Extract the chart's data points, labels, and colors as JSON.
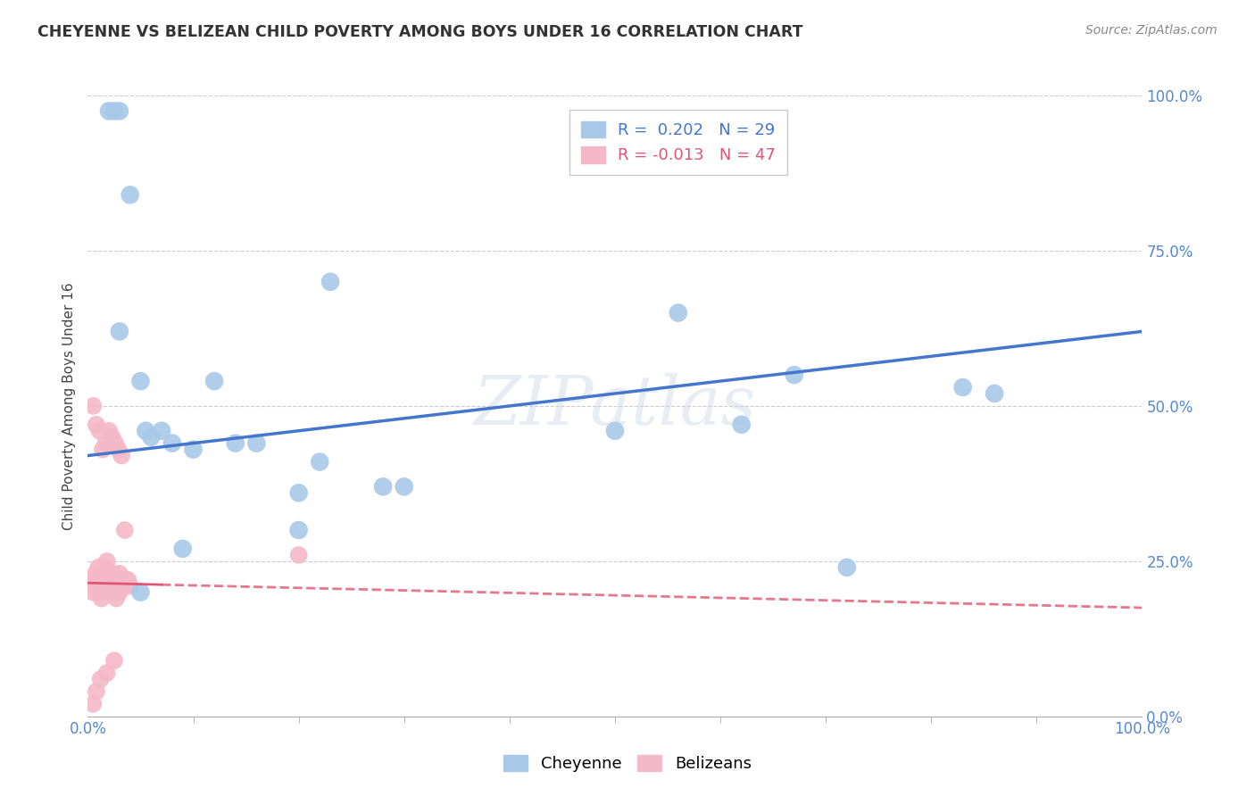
{
  "title": "CHEYENNE VS BELIZEAN CHILD POVERTY AMONG BOYS UNDER 16 CORRELATION CHART",
  "source": "Source: ZipAtlas.com",
  "ylabel": "Child Poverty Among Boys Under 16",
  "xlim": [
    0,
    1
  ],
  "ylim": [
    0,
    1
  ],
  "ytick_values": [
    0,
    0.25,
    0.5,
    0.75,
    1.0
  ],
  "background_color": "#ffffff",
  "grid_color": "#cccccc",
  "watermark": "ZIPatlas",
  "cheyenne_color": "#a8c8e8",
  "belizean_color": "#f5b8c8",
  "cheyenne_line_color": "#4477cc",
  "belizean_line_color": "#e05575",
  "cheyenne_R": 0.202,
  "cheyenne_N": 29,
  "belizean_R": -0.013,
  "belizean_N": 47,
  "cheyenne_x": [
    0.02,
    0.025,
    0.03,
    0.04,
    0.05,
    0.055,
    0.07,
    0.08,
    0.1,
    0.12,
    0.14,
    0.16,
    0.2,
    0.22,
    0.23,
    0.28,
    0.3,
    0.56,
    0.62,
    0.67,
    0.72,
    0.83,
    0.86,
    0.03,
    0.05,
    0.06,
    0.09,
    0.2,
    0.5
  ],
  "cheyenne_y": [
    0.975,
    0.975,
    0.975,
    0.84,
    0.54,
    0.46,
    0.46,
    0.44,
    0.43,
    0.54,
    0.44,
    0.44,
    0.36,
    0.41,
    0.7,
    0.37,
    0.37,
    0.65,
    0.47,
    0.55,
    0.24,
    0.53,
    0.52,
    0.62,
    0.2,
    0.45,
    0.27,
    0.3,
    0.46
  ],
  "belizean_x": [
    0.005,
    0.007,
    0.009,
    0.01,
    0.012,
    0.014,
    0.016,
    0.018,
    0.02,
    0.022,
    0.024,
    0.026,
    0.028,
    0.03,
    0.032,
    0.034,
    0.036,
    0.005,
    0.008,
    0.011,
    0.014,
    0.017,
    0.02,
    0.023,
    0.026,
    0.029,
    0.032,
    0.035,
    0.038,
    0.04,
    0.005,
    0.008,
    0.01,
    0.013,
    0.015,
    0.018,
    0.021,
    0.024,
    0.027,
    0.03,
    0.033,
    0.2,
    0.005,
    0.008,
    0.012,
    0.018,
    0.025
  ],
  "belizean_y": [
    0.22,
    0.23,
    0.22,
    0.24,
    0.23,
    0.22,
    0.24,
    0.25,
    0.22,
    0.22,
    0.23,
    0.21,
    0.22,
    0.23,
    0.22,
    0.21,
    0.22,
    0.5,
    0.47,
    0.46,
    0.43,
    0.44,
    0.46,
    0.45,
    0.44,
    0.43,
    0.42,
    0.3,
    0.22,
    0.21,
    0.2,
    0.21,
    0.2,
    0.19,
    0.21,
    0.2,
    0.21,
    0.2,
    0.19,
    0.2,
    0.21,
    0.26,
    0.02,
    0.04,
    0.06,
    0.07,
    0.09
  ],
  "xtick_minor_positions": [
    0.1,
    0.2,
    0.3,
    0.4,
    0.5,
    0.6,
    0.7,
    0.8,
    0.9
  ]
}
